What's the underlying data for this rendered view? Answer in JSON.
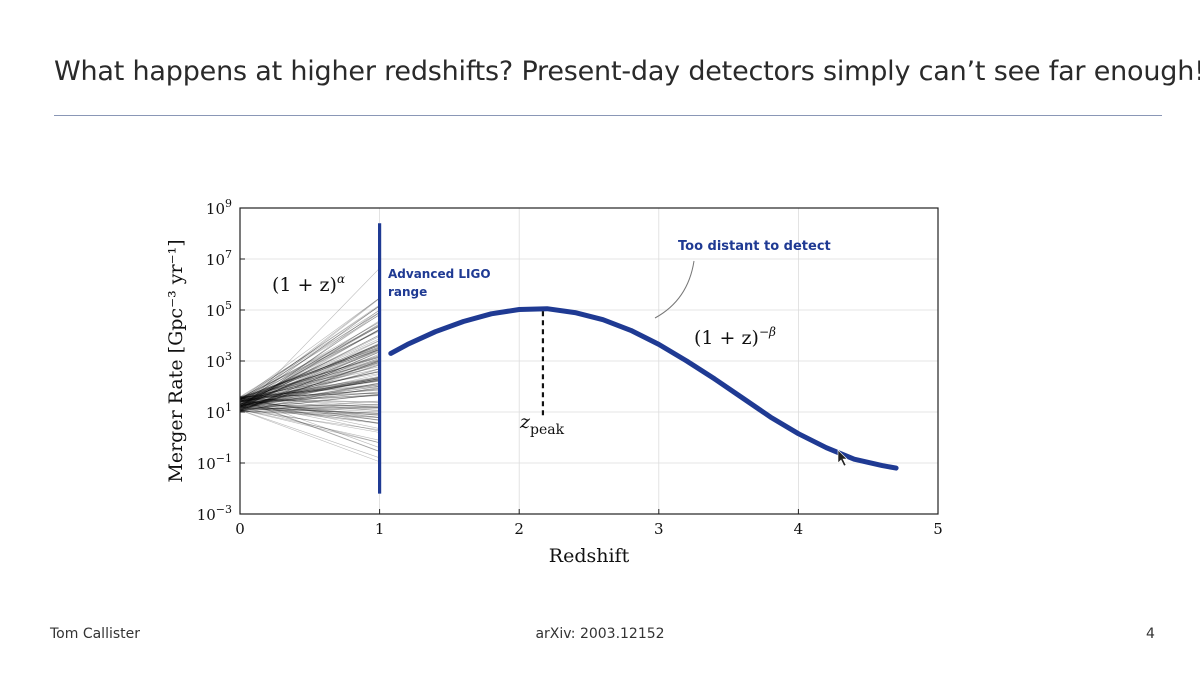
{
  "slide": {
    "title": "What happens at higher redshifts? Present-day detectors simply can’t see far enough!",
    "footer_left": "Tom Callister",
    "footer_center": "arXiv: 2003.12152",
    "footer_right": "4"
  },
  "colors": {
    "accent": "#1f3a93",
    "rule": "#8a97b6",
    "curves": "#000000"
  },
  "chart_data": {
    "type": "line",
    "xlabel": "Redshift",
    "ylabel": "Merger Rate [Gpc⁻³ yr⁻¹]",
    "xlim": [
      0,
      5
    ],
    "ylim_log10": [
      -3,
      9
    ],
    "y_scale": "log",
    "x_ticks": [
      {
        "value": 0,
        "label": "0"
      },
      {
        "value": 1,
        "label": "1"
      },
      {
        "value": 2,
        "label": "2"
      },
      {
        "value": 3,
        "label": "3"
      },
      {
        "value": 4,
        "label": "4"
      },
      {
        "value": 5,
        "label": "5"
      }
    ],
    "y_ticks": [
      {
        "exp": -3,
        "label": "10",
        "sup": "−3"
      },
      {
        "exp": -1,
        "label": "10",
        "sup": "−1"
      },
      {
        "exp": 1,
        "label": "10",
        "sup": "1"
      },
      {
        "exp": 3,
        "label": "10",
        "sup": "3"
      },
      {
        "exp": 5,
        "label": "10",
        "sup": "5"
      },
      {
        "exp": 7,
        "label": "10",
        "sup": "7"
      },
      {
        "exp": 9,
        "label": "10",
        "sup": "9"
      }
    ],
    "grid": true,
    "ligo_range_z": 1,
    "ligo_line_log10": [
      -2.2,
      8.4
    ],
    "low_z_fan": {
      "pivot_log10": 1.3,
      "n_lines": 180,
      "end_log10_min": -2.0,
      "end_log10_max": 7.0
    },
    "high_z_curve": {
      "name": "",
      "points": [
        [
          1.08,
          3.3
        ],
        [
          1.2,
          3.65
        ],
        [
          1.4,
          4.15
        ],
        [
          1.6,
          4.55
        ],
        [
          1.8,
          4.85
        ],
        [
          2.0,
          5.02
        ],
        [
          2.2,
          5.05
        ],
        [
          2.4,
          4.9
        ],
        [
          2.6,
          4.62
        ],
        [
          2.8,
          4.2
        ],
        [
          3.0,
          3.65
        ],
        [
          3.2,
          3.0
        ],
        [
          3.4,
          2.3
        ],
        [
          3.6,
          1.55
        ],
        [
          3.8,
          0.8
        ],
        [
          4.0,
          0.15
        ],
        [
          4.2,
          -0.4
        ],
        [
          4.4,
          -0.85
        ],
        [
          4.6,
          -1.1
        ],
        [
          4.7,
          -1.2
        ]
      ]
    },
    "z_peak": 2.17,
    "z_peak_line_log10": [
      0.8,
      4.95
    ],
    "annotations": {
      "low_formula": "(1 + z)",
      "low_formula_sup": "α",
      "high_formula": "(1 + z)",
      "high_formula_sup": "−β",
      "ligo_label_line1": "Advanced LIGO",
      "ligo_label_line2": "range",
      "distant_label": "Too distant to detect",
      "zpeak_main": "z",
      "zpeak_sub": "peak"
    }
  }
}
